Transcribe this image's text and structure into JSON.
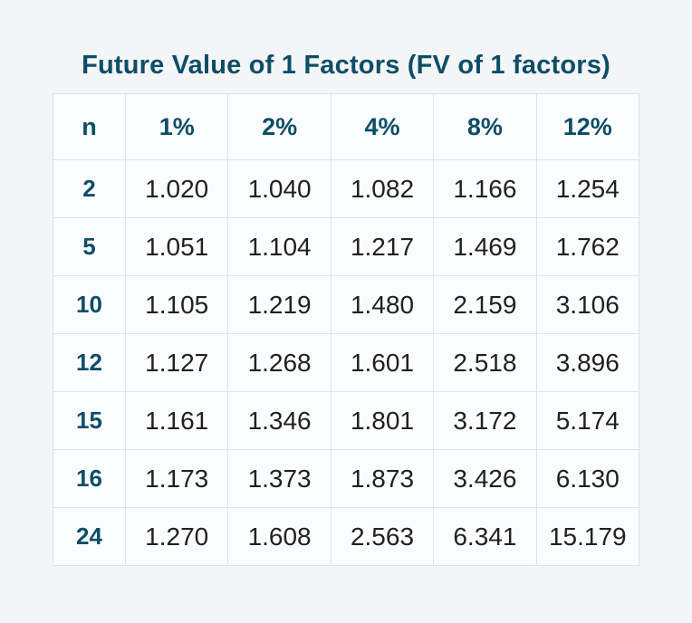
{
  "page": {
    "background_color": "#f4f5f7",
    "accent_color": "#0d4e66",
    "border_color": "#dce3e9"
  },
  "title": "Future Value of 1 Factors (FV of 1 factors)",
  "table": {
    "headers": [
      "n",
      "1%",
      "2%",
      "4%",
      "8%",
      "12%"
    ],
    "rows": [
      {
        "n": "2",
        "values": [
          "1.020",
          "1.040",
          "1.082",
          "1.166",
          "1.254"
        ]
      },
      {
        "n": "5",
        "values": [
          "1.051",
          "1.104",
          "1.217",
          "1.469",
          "1.762"
        ]
      },
      {
        "n": "10",
        "values": [
          "1.105",
          "1.219",
          "1.480",
          "2.159",
          "3.106"
        ]
      },
      {
        "n": "12",
        "values": [
          "1.127",
          "1.268",
          "1.601",
          "2.518",
          "3.896"
        ]
      },
      {
        "n": "15",
        "values": [
          "1.161",
          "1.346",
          "1.801",
          "3.172",
          "5.174"
        ]
      },
      {
        "n": "16",
        "values": [
          "1.173",
          "1.373",
          "1.873",
          "3.426",
          "6.130"
        ]
      },
      {
        "n": "24",
        "values": [
          "1.270",
          "1.608",
          "2.563",
          "6.341",
          "15.179"
        ]
      }
    ]
  },
  "chart_data": {
    "type": "table",
    "title": "Future Value of 1 Factors (FV of 1 factors)",
    "columns": [
      "n",
      "1%",
      "2%",
      "4%",
      "8%",
      "12%"
    ],
    "rows": [
      [
        2,
        1.02,
        1.04,
        1.082,
        1.166,
        1.254
      ],
      [
        5,
        1.051,
        1.104,
        1.217,
        1.469,
        1.762
      ],
      [
        10,
        1.105,
        1.219,
        1.48,
        2.159,
        3.106
      ],
      [
        12,
        1.127,
        1.268,
        1.601,
        2.518,
        3.896
      ],
      [
        15,
        1.161,
        1.346,
        1.801,
        3.172,
        5.174
      ],
      [
        16,
        1.173,
        1.373,
        1.873,
        3.426,
        6.13
      ],
      [
        24,
        1.27,
        1.608,
        2.563,
        6.341,
        15.179
      ]
    ]
  }
}
